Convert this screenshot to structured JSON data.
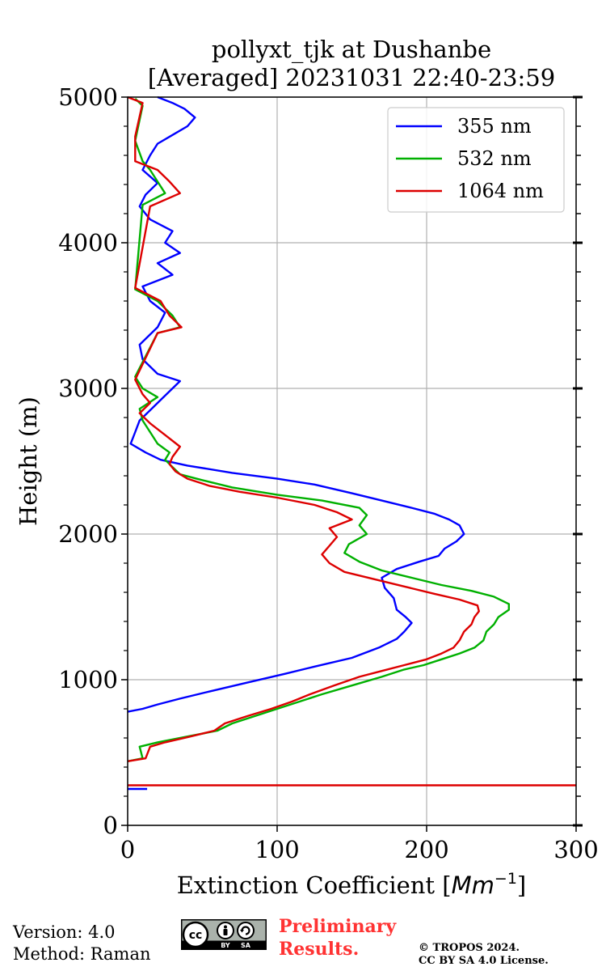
{
  "chart_data": {
    "type": "line",
    "title_line1": "pollyxt_tjk at Dushanbe",
    "title_line2": "[Averaged] 20231031 22:40-23:59",
    "xlabel": "Extinction Coefficient [",
    "xlabel_unit": "Mm",
    "xlabel_exp": "−1",
    "xlabel_close": "]",
    "ylabel": "Height (m)",
    "xlim": [
      0,
      300
    ],
    "ylim": [
      0,
      5000
    ],
    "xticks": [
      0,
      100,
      200,
      300
    ],
    "yticks": [
      0,
      1000,
      2000,
      3000,
      4000,
      5000
    ],
    "grid": true,
    "legend_position": "top-right",
    "series": [
      {
        "name": "355 nm",
        "color": "#0000ff",
        "points": [
          [
            0,
            780
          ],
          [
            10,
            800
          ],
          [
            20,
            830
          ],
          [
            35,
            870
          ],
          [
            55,
            920
          ],
          [
            80,
            980
          ],
          [
            105,
            1040
          ],
          [
            125,
            1090
          ],
          [
            150,
            1150
          ],
          [
            168,
            1220
          ],
          [
            180,
            1280
          ],
          [
            185,
            1330
          ],
          [
            190,
            1390
          ],
          [
            186,
            1430
          ],
          [
            180,
            1480
          ],
          [
            178,
            1560
          ],
          [
            172,
            1630
          ],
          [
            170,
            1700
          ],
          [
            180,
            1760
          ],
          [
            195,
            1810
          ],
          [
            208,
            1850
          ],
          [
            212,
            1900
          ],
          [
            220,
            1950
          ],
          [
            225,
            2000
          ],
          [
            222,
            2060
          ],
          [
            215,
            2100
          ],
          [
            205,
            2140
          ],
          [
            190,
            2180
          ],
          [
            170,
            2230
          ],
          [
            150,
            2280
          ],
          [
            125,
            2340
          ],
          [
            100,
            2380
          ],
          [
            70,
            2420
          ],
          [
            40,
            2470
          ],
          [
            22,
            2510
          ],
          [
            12,
            2560
          ],
          [
            2,
            2620
          ],
          [
            5,
            2700
          ],
          [
            8,
            2780
          ],
          [
            15,
            2850
          ],
          [
            22,
            2920
          ],
          [
            30,
            3000
          ],
          [
            35,
            3050
          ],
          [
            20,
            3100
          ],
          [
            10,
            3200
          ],
          [
            8,
            3300
          ],
          [
            20,
            3420
          ],
          [
            25,
            3520
          ],
          [
            15,
            3600
          ],
          [
            10,
            3700
          ],
          [
            30,
            3780
          ],
          [
            20,
            3860
          ],
          [
            35,
            3930
          ],
          [
            25,
            4000
          ],
          [
            30,
            4080
          ],
          [
            15,
            4160
          ],
          [
            8,
            4250
          ],
          [
            12,
            4330
          ],
          [
            20,
            4410
          ],
          [
            10,
            4500
          ],
          [
            15,
            4600
          ],
          [
            20,
            4680
          ],
          [
            30,
            4740
          ],
          [
            40,
            4800
          ],
          [
            45,
            4860
          ],
          [
            38,
            4920
          ],
          [
            30,
            4960
          ],
          [
            20,
            5000
          ]
        ]
      },
      {
        "name": "532 nm",
        "color": "#00b000",
        "points": [
          [
            0,
            440
          ],
          [
            10,
            460
          ],
          [
            8,
            540
          ],
          [
            20,
            570
          ],
          [
            40,
            610
          ],
          [
            60,
            650
          ],
          [
            70,
            700
          ],
          [
            85,
            750
          ],
          [
            100,
            800
          ],
          [
            115,
            850
          ],
          [
            130,
            900
          ],
          [
            150,
            960
          ],
          [
            170,
            1020
          ],
          [
            185,
            1070
          ],
          [
            198,
            1100
          ],
          [
            210,
            1140
          ],
          [
            222,
            1180
          ],
          [
            232,
            1220
          ],
          [
            238,
            1270
          ],
          [
            240,
            1330
          ],
          [
            245,
            1380
          ],
          [
            248,
            1430
          ],
          [
            255,
            1480
          ],
          [
            255,
            1520
          ],
          [
            245,
            1570
          ],
          [
            230,
            1610
          ],
          [
            210,
            1650
          ],
          [
            190,
            1700
          ],
          [
            170,
            1750
          ],
          [
            155,
            1810
          ],
          [
            145,
            1870
          ],
          [
            148,
            1930
          ],
          [
            160,
            2000
          ],
          [
            155,
            2060
          ],
          [
            160,
            2130
          ],
          [
            155,
            2180
          ],
          [
            130,
            2230
          ],
          [
            100,
            2270
          ],
          [
            70,
            2320
          ],
          [
            50,
            2370
          ],
          [
            35,
            2410
          ],
          [
            30,
            2460
          ],
          [
            25,
            2510
          ],
          [
            28,
            2560
          ],
          [
            20,
            2620
          ],
          [
            15,
            2700
          ],
          [
            10,
            2780
          ],
          [
            8,
            2860
          ],
          [
            20,
            2940
          ],
          [
            10,
            3000
          ],
          [
            5,
            3080
          ],
          [
            20,
            3380
          ],
          [
            35,
            3420
          ],
          [
            30,
            3500
          ],
          [
            20,
            3600
          ],
          [
            5,
            3680
          ],
          [
            10,
            4260
          ],
          [
            25,
            4340
          ],
          [
            20,
            4420
          ],
          [
            15,
            4500
          ],
          [
            10,
            4560
          ],
          [
            5,
            4700
          ],
          [
            10,
            4940
          ],
          [
            5,
            4990
          ]
        ]
      },
      {
        "name": "1064 nm",
        "color": "#dd0000",
        "points": [
          [
            0,
            440
          ],
          [
            12,
            460
          ],
          [
            15,
            540
          ],
          [
            25,
            570
          ],
          [
            42,
            610
          ],
          [
            58,
            650
          ],
          [
            65,
            700
          ],
          [
            80,
            750
          ],
          [
            96,
            800
          ],
          [
            110,
            850
          ],
          [
            122,
            900
          ],
          [
            138,
            960
          ],
          [
            155,
            1020
          ],
          [
            170,
            1060
          ],
          [
            185,
            1100
          ],
          [
            200,
            1140
          ],
          [
            210,
            1180
          ],
          [
            218,
            1220
          ],
          [
            222,
            1270
          ],
          [
            225,
            1330
          ],
          [
            230,
            1380
          ],
          [
            232,
            1430
          ],
          [
            235,
            1470
          ],
          [
            234,
            1510
          ],
          [
            222,
            1550
          ],
          [
            205,
            1590
          ],
          [
            185,
            1640
          ],
          [
            165,
            1690
          ],
          [
            145,
            1740
          ],
          [
            135,
            1800
          ],
          [
            130,
            1860
          ],
          [
            135,
            1920
          ],
          [
            140,
            1980
          ],
          [
            135,
            2040
          ],
          [
            150,
            2100
          ],
          [
            140,
            2150
          ],
          [
            125,
            2200
          ],
          [
            100,
            2250
          ],
          [
            75,
            2290
          ],
          [
            55,
            2330
          ],
          [
            40,
            2380
          ],
          [
            32,
            2430
          ],
          [
            28,
            2480
          ],
          [
            30,
            2530
          ],
          [
            35,
            2600
          ],
          [
            25,
            2680
          ],
          [
            15,
            2760
          ],
          [
            8,
            2830
          ],
          [
            15,
            2900
          ],
          [
            10,
            2960
          ],
          [
            5,
            3060
          ],
          [
            20,
            3380
          ],
          [
            36,
            3420
          ],
          [
            28,
            3500
          ],
          [
            22,
            3600
          ],
          [
            5,
            3690
          ],
          [
            15,
            4250
          ],
          [
            35,
            4340
          ],
          [
            28,
            4420
          ],
          [
            20,
            4500
          ],
          [
            5,
            4560
          ],
          [
            5,
            4730
          ],
          [
            10,
            4960
          ],
          [
            0,
            5000
          ]
        ]
      },
      {
        "name": "1064 nm",
        "color": "#dd0000",
        "points": [
          [
            0,
            275
          ],
          [
            300,
            275
          ]
        ]
      },
      {
        "name": "355 nm",
        "color": "#0000ff",
        "points": [
          [
            0,
            250
          ],
          [
            13,
            250
          ]
        ]
      }
    ]
  },
  "footer": {
    "version": "Version: 4.0",
    "method": "Method: Raman",
    "preliminary_line1": "Preliminary",
    "preliminary_line2": "Results.",
    "copyright_line1": "© TROPOS 2024.",
    "copyright_line2": "CC BY SA 4.0 License."
  },
  "license_badge": {
    "cc": "cc",
    "by": "BY",
    "sa": "SA"
  }
}
